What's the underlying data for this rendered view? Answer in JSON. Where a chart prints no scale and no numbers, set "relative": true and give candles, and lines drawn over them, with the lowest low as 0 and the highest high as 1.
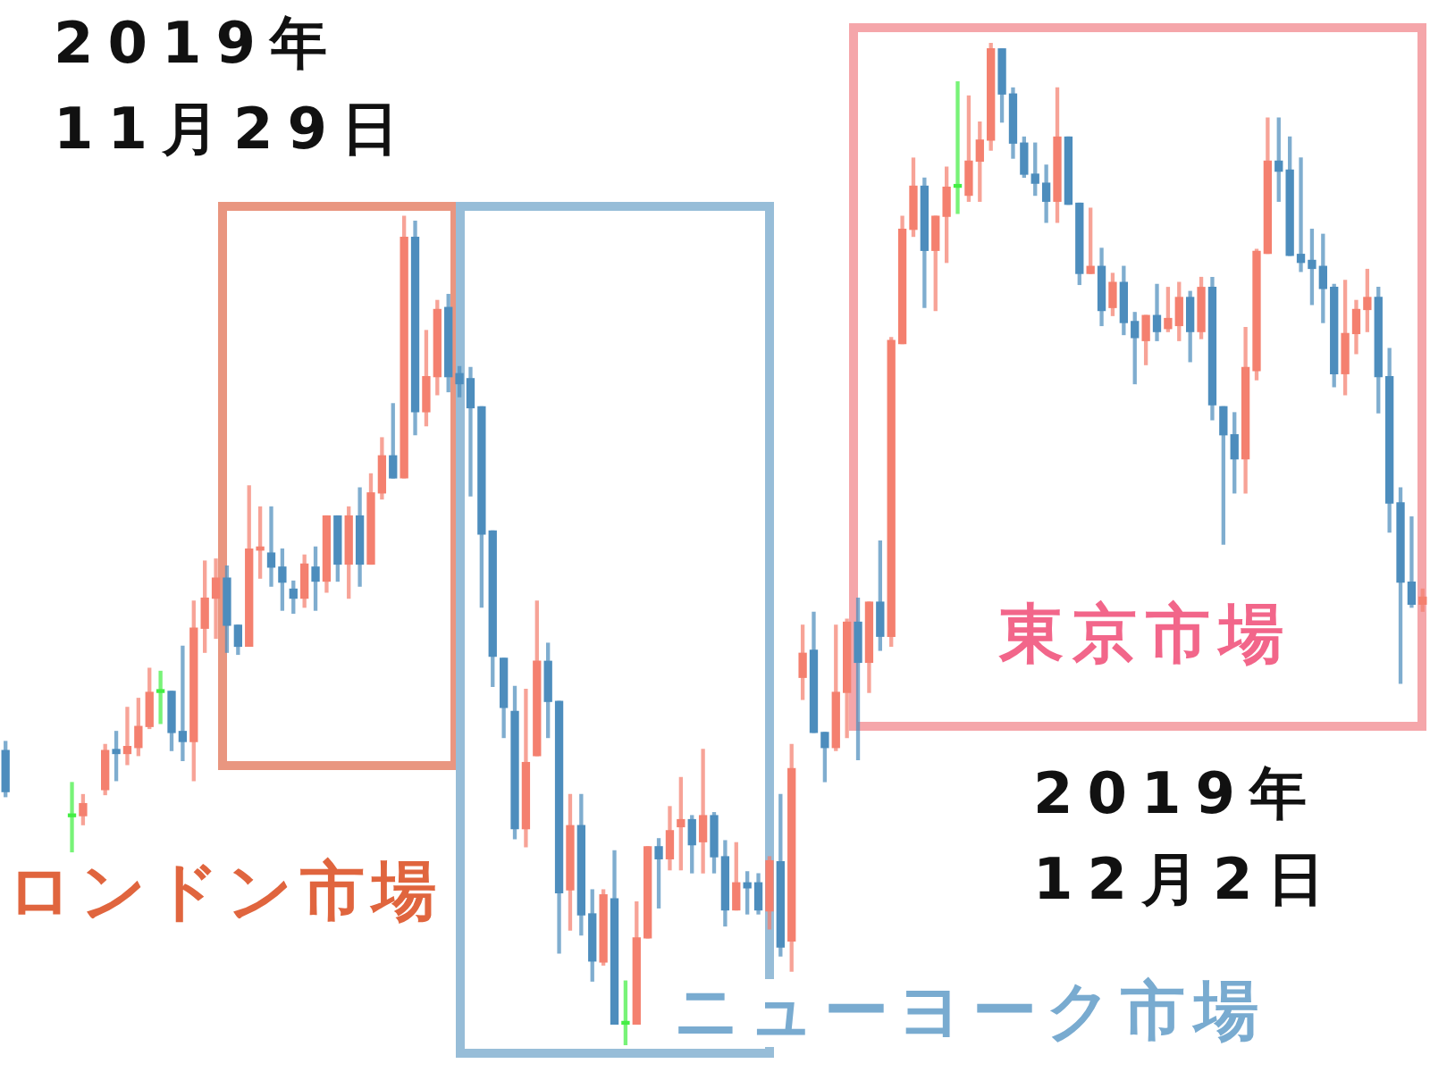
{
  "chart_data": {
    "type": "candlestick",
    "relative": true,
    "tick_labels": false,
    "categories": [
      null,
      null,
      null,
      null,
      null,
      null,
      null,
      null,
      null,
      null,
      null,
      null,
      null,
      null,
      null,
      null,
      null,
      null,
      null,
      null,
      null,
      null,
      null,
      null,
      null,
      null,
      null,
      null,
      null,
      null,
      null,
      null,
      null,
      null,
      null,
      null,
      null,
      null,
      null,
      null,
      null,
      null,
      null,
      null,
      null,
      null,
      null,
      null,
      null,
      null,
      null,
      null,
      null,
      null,
      null,
      null,
      null,
      null,
      null,
      null,
      null,
      null,
      null,
      null,
      null,
      null,
      null,
      null,
      null,
      null,
      null,
      null,
      null,
      null,
      null,
      null,
      null,
      null,
      null,
      null,
      null,
      null,
      null,
      null,
      null,
      null,
      null,
      null,
      null,
      null,
      null,
      null,
      null,
      null,
      null,
      null,
      null,
      null,
      null,
      null,
      null,
      null,
      null,
      null,
      null,
      null,
      null,
      null,
      null,
      null,
      null,
      null,
      null,
      null,
      null,
      null,
      null,
      null,
      null,
      null,
      null,
      null,
      null,
      null,
      null,
      null,
      null,
      null,
      null
    ],
    "ohlc": [
      [
        0.294,
        0.303,
        0.248,
        0.253
      ],
      null,
      null,
      null,
      null,
      null,
      [
        0.228,
        0.262,
        0.193,
        0.228
      ],
      [
        0.229,
        0.25,
        0.22,
        0.241
      ],
      null,
      [
        0.255,
        0.3,
        0.25,
        0.294
      ],
      [
        0.295,
        0.313,
        0.264,
        0.291
      ],
      [
        0.291,
        0.337,
        0.28,
        0.298
      ],
      [
        0.297,
        0.346,
        0.289,
        0.318
      ],
      [
        0.318,
        0.376,
        0.316,
        0.352
      ],
      [
        0.352,
        0.373,
        0.321,
        0.352
      ],
      [
        0.353,
        0.353,
        0.294,
        0.312
      ],
      [
        0.313,
        0.398,
        0.284,
        0.303
      ],
      [
        0.303,
        0.443,
        0.264,
        0.416
      ],
      [
        0.416,
        0.483,
        0.392,
        0.446
      ],
      [
        0.446,
        0.485,
        0.406,
        0.466
      ],
      [
        0.466,
        0.478,
        0.392,
        0.419
      ],
      [
        0.419,
        0.419,
        0.39,
        0.398
      ],
      [
        0.398,
        0.558,
        0.398,
        0.495
      ],
      [
        0.494,
        0.537,
        0.466,
        0.497
      ],
      [
        0.491,
        0.537,
        0.458,
        0.477
      ],
      [
        0.477,
        0.495,
        0.434,
        0.462
      ],
      [
        0.455,
        0.463,
        0.431,
        0.446
      ],
      [
        0.446,
        0.489,
        0.437,
        0.48
      ],
      [
        0.477,
        0.497,
        0.434,
        0.463
      ],
      [
        0.463,
        0.528,
        0.452,
        0.528
      ],
      [
        0.528,
        0.528,
        0.463,
        0.48
      ],
      [
        0.48,
        0.537,
        0.446,
        0.528
      ],
      [
        0.528,
        0.556,
        0.458,
        0.48
      ],
      [
        0.48,
        0.57,
        0.48,
        0.551
      ],
      [
        0.551,
        0.606,
        0.545,
        0.588
      ],
      [
        0.588,
        0.64,
        0.566,
        0.566
      ],
      [
        0.566,
        0.827,
        0.566,
        0.806
      ],
      [
        0.806,
        0.822,
        0.609,
        0.632
      ],
      [
        0.632,
        0.713,
        0.618,
        0.667
      ],
      [
        0.667,
        0.743,
        0.649,
        0.734
      ],
      [
        0.736,
        0.749,
        0.652,
        0.667
      ],
      [
        0.67,
        0.677,
        0.647,
        0.66
      ],
      [
        0.665,
        0.676,
        0.548,
        0.636
      ],
      [
        0.637,
        0.637,
        0.437,
        0.51
      ],
      [
        0.513,
        0.513,
        0.358,
        0.388
      ],
      [
        0.386,
        0.386,
        0.307,
        0.337
      ],
      [
        0.333,
        0.358,
        0.206,
        0.216
      ],
      [
        0.216,
        0.355,
        0.198,
        0.282
      ],
      [
        0.289,
        0.443,
        0.289,
        0.383
      ],
      [
        0.383,
        0.401,
        0.307,
        0.343
      ],
      [
        0.343,
        0.343,
        0.092,
        0.152
      ],
      [
        0.155,
        0.25,
        0.115,
        0.219
      ],
      [
        0.219,
        0.25,
        0.11,
        0.13
      ],
      [
        0.131,
        0.155,
        0.064,
        0.084
      ],
      [
        0.083,
        0.155,
        0.08,
        0.15
      ],
      [
        0.146,
        0.194,
        0.021,
        0.021
      ],
      [
        0.021,
        0.064,
        0,
        0.021
      ],
      [
        0.021,
        0.143,
        0.021,
        0.107
      ],
      [
        0.107,
        0.198,
        0.107,
        0.198
      ],
      [
        0.198,
        0.206,
        0.137,
        0.186
      ],
      [
        0.186,
        0.238,
        0.175,
        0.214
      ],
      [
        0.218,
        0.267,
        0.175,
        0.225
      ],
      [
        0.225,
        0.229,
        0.172,
        0.2
      ],
      [
        0.203,
        0.295,
        0.172,
        0.229
      ],
      [
        0.229,
        0.232,
        0.172,
        0.188
      ],
      [
        0.188,
        0.204,
        0.119,
        0.135
      ],
      [
        0.135,
        0.202,
        0.135,
        0.162
      ],
      [
        0.162,
        0.173,
        0.131,
        0.157
      ],
      [
        0.162,
        0.171,
        0.131,
        0.135
      ],
      [
        0.134,
        0.188,
        0.116,
        0.184
      ],
      [
        0.183,
        0.25,
        0.089,
        0.098
      ],
      [
        0.104,
        0.3,
        0.074,
        0.276
      ],
      [
        0.367,
        0.419,
        0.345,
        0.391
      ],
      [
        0.394,
        0.432,
        0.312,
        0.312
      ],
      [
        0.312,
        0.312,
        0.263,
        0.297
      ],
      [
        0.297,
        0.419,
        0.294,
        0.352
      ],
      [
        0.352,
        0.425,
        0.307,
        0.422
      ],
      [
        0.422,
        0.446,
        0.285,
        0.382
      ],
      [
        0.382,
        0.442,
        0.352,
        0.442
      ],
      [
        0.442,
        0.503,
        0.394,
        0.408
      ],
      [
        0.408,
        0.706,
        0.398,
        0.703
      ],
      [
        0.7,
        0.827,
        0.7,
        0.814
      ],
      [
        0.814,
        0.885,
        0.807,
        0.857
      ],
      [
        0.857,
        0.865,
        0.736,
        0.793
      ],
      [
        0.793,
        0.827,
        0.733,
        0.827
      ],
      [
        0.827,
        0.876,
        0.781,
        0.856
      ],
      [
        0.856,
        0.961,
        0.83,
        0.856
      ],
      [
        0.848,
        0.947,
        0.842,
        0.882
      ],
      [
        0.882,
        0.921,
        0.842,
        0.903
      ],
      [
        0.903,
        1,
        0.893,
        0.994
      ],
      [
        0.994,
        0.994,
        0.921,
        0.949
      ],
      [
        0.949,
        0.955,
        0.885,
        0.9
      ],
      [
        0.9,
        0.906,
        0.866,
        0.869
      ],
      [
        0.869,
        0.9,
        0.848,
        0.86
      ],
      [
        0.86,
        0.878,
        0.821,
        0.842
      ],
      [
        0.842,
        0.955,
        0.821,
        0.906
      ],
      [
        0.906,
        0.906,
        0.839,
        0.839
      ],
      [
        0.84,
        0.84,
        0.759,
        0.77
      ],
      [
        0.77,
        0.835,
        0.77,
        0.777
      ],
      [
        0.777,
        0.795,
        0.718,
        0.733
      ],
      [
        0.736,
        0.77,
        0.728,
        0.761
      ],
      [
        0.761,
        0.777,
        0.709,
        0.721
      ],
      [
        0.722,
        0.731,
        0.66,
        0.706
      ],
      [
        0.703,
        0.728,
        0.679,
        0.728
      ],
      [
        0.728,
        0.759,
        0.703,
        0.712
      ],
      [
        0.715,
        0.756,
        0.712,
        0.725
      ],
      [
        0.718,
        0.761,
        0.703,
        0.746
      ],
      [
        0.746,
        0.752,
        0.682,
        0.712
      ],
      [
        0.712,
        0.766,
        0.705,
        0.756
      ],
      [
        0.756,
        0.766,
        0.624,
        0.639
      ],
      [
        0.637,
        0.637,
        0.5,
        0.609
      ],
      [
        0.609,
        0.631,
        0.551,
        0.585
      ],
      [
        0.585,
        0.716,
        0.551,
        0.676
      ],
      [
        0.673,
        0.794,
        0.664,
        0.792
      ],
      [
        0.79,
        0.925,
        0.79,
        0.882
      ],
      [
        0.882,
        0.925,
        0.842,
        0.872
      ],
      [
        0.873,
        0.906,
        0.788,
        0.788
      ],
      [
        0.789,
        0.885,
        0.772,
        0.781
      ],
      [
        0.783,
        0.814,
        0.739,
        0.775
      ],
      [
        0.777,
        0.809,
        0.721,
        0.755
      ],
      [
        0.756,
        0.759,
        0.657,
        0.67
      ],
      [
        0.67,
        0.763,
        0.649,
        0.71
      ],
      [
        0.71,
        0.743,
        0.69,
        0.734
      ],
      [
        0.734,
        0.774,
        0.712,
        0.746
      ],
      [
        0.746,
        0.756,
        0.631,
        0.667
      ],
      [
        0.667,
        0.695,
        0.512,
        0.541
      ],
      [
        0.541,
        0.556,
        0.361,
        0.462
      ],
      [
        0.462,
        0.527,
        0.437,
        0.44
      ],
      [
        0.44,
        0.455,
        0.433,
        0.447
      ]
    ],
    "colors": [
      "#4d8dbd",
      null,
      null,
      null,
      null,
      null,
      "#44ee44",
      "#f4806f",
      null,
      "#f4806f",
      "#4d8dbd",
      "#f4806f",
      "#f4806f",
      "#f4806f",
      "#44ee44",
      "#4d8dbd",
      "#4d8dbd",
      "#f4806f",
      "#f4806f",
      "#f4806f",
      "#4d8dbd",
      "#4d8dbd",
      "#f4806f",
      "#f4806f",
      "#4d8dbd",
      "#4d8dbd",
      "#4d8dbd",
      "#f4806f",
      "#4d8dbd",
      "#f4806f",
      "#4d8dbd",
      "#f4806f",
      "#4d8dbd",
      "#f4806f",
      "#f4806f",
      "#4d8dbd",
      "#f4806f",
      "#4d8dbd",
      "#f4806f",
      "#f4806f",
      "#4d8dbd",
      "#4d8dbd",
      "#4d8dbd",
      "#4d8dbd",
      "#4d8dbd",
      "#4d8dbd",
      "#4d8dbd",
      "#f4806f",
      "#f4806f",
      "#4d8dbd",
      "#4d8dbd",
      "#f4806f",
      "#4d8dbd",
      "#4d8dbd",
      "#f4806f",
      "#4d8dbd",
      "#44ee44",
      "#f4806f",
      "#f4806f",
      "#4d8dbd",
      "#f4806f",
      "#f4806f",
      "#4d8dbd",
      "#f4806f",
      "#4d8dbd",
      "#4d8dbd",
      "#f4806f",
      "#4d8dbd",
      "#4d8dbd",
      "#f4806f",
      "#4d8dbd",
      "#f4806f",
      "#f4806f",
      "#4d8dbd",
      "#4d8dbd",
      "#f4806f",
      "#f4806f",
      "#4d8dbd",
      "#f4806f",
      "#4d8dbd",
      "#f4806f",
      "#f4806f",
      "#f4806f",
      "#4d8dbd",
      "#f4806f",
      "#f4806f",
      "#44ee44",
      "#f4806f",
      "#f4806f",
      "#f4806f",
      "#4d8dbd",
      "#4d8dbd",
      "#4d8dbd",
      "#4d8dbd",
      "#4d8dbd",
      "#f4806f",
      "#4d8dbd",
      "#4d8dbd",
      "#f4806f",
      "#4d8dbd",
      "#f4806f",
      "#4d8dbd",
      "#4d8dbd",
      "#f4806f",
      "#4d8dbd",
      "#f4806f",
      "#f4806f",
      "#4d8dbd",
      "#f4806f",
      "#4d8dbd",
      "#4d8dbd",
      "#4d8dbd",
      "#f4806f",
      "#f4806f",
      "#f4806f",
      "#4d8dbd",
      "#4d8dbd",
      "#4d8dbd",
      "#4d8dbd",
      "#4d8dbd",
      "#4d8dbd",
      "#f4806f",
      "#f4806f",
      "#f4806f",
      "#4d8dbd",
      "#4d8dbd",
      "#4d8dbd",
      "#4d8dbd",
      "#f4806f"
    ],
    "annotations": [
      "2019年\n11月29日",
      "ロンドン市場",
      "ニューヨーク市場",
      "東京市場",
      "2019年\n12月2日"
    ]
  }
}
